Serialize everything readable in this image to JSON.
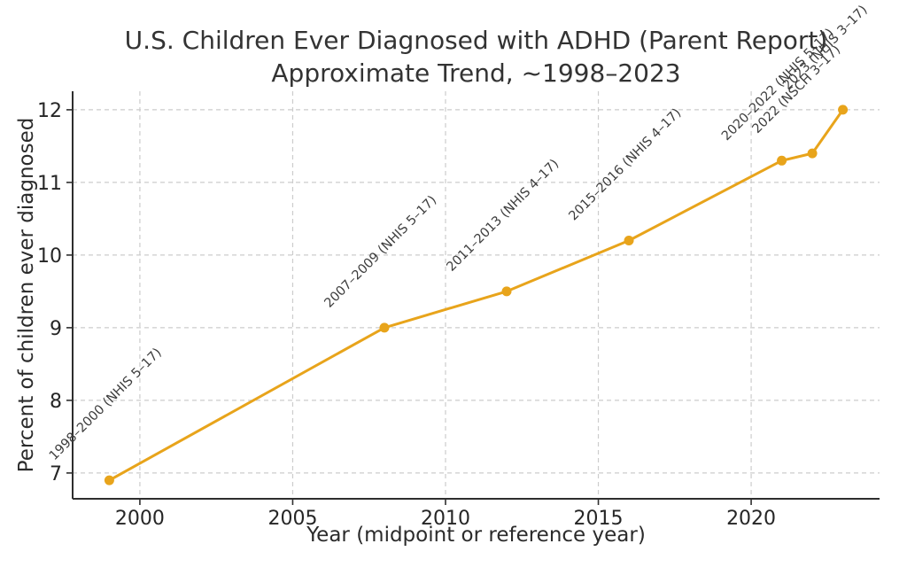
{
  "chart_data": {
    "type": "line",
    "title": "U.S. Children Ever Diagnosed with ADHD (Parent Report)\nApproximate Trend, ~1998–2023",
    "title_line1": "U.S. Children Ever Diagnosed with ADHD (Parent Report)",
    "title_line2": "Approximate Trend, ~1998–2023",
    "xlabel": "Year (midpoint or reference year)",
    "ylabel": "Percent of children ever diagnosed",
    "x": [
      1999,
      2008,
      2012,
      2016,
      2021,
      2022,
      2023
    ],
    "values": [
      6.9,
      9.0,
      9.5,
      10.2,
      11.3,
      11.4,
      12.0
    ],
    "point_labels": [
      "1998–2000 (NHIS 5–17)",
      "2007–2009 (NHIS 5–17)",
      "2011–2013 (NHIS 4–17)",
      "2015–2016 (NHIS 4–17)",
      "2020–2022 (NHIS 5–17)",
      "2022 (NSCH 3–17)",
      "2023 (NHIS 3–17)"
    ],
    "x_ticks": [
      2000,
      2005,
      2010,
      2015,
      2020
    ],
    "y_ticks": [
      7,
      8,
      9,
      10,
      11,
      12
    ],
    "xlim": [
      1997.8,
      2024.2
    ],
    "ylim": [
      6.645,
      12.255
    ],
    "grid": true,
    "legend": "none",
    "colors": {
      "line": "#E8A41B",
      "marker": "#E8A41B",
      "grid": "#cccccc",
      "spine": "#2e2e2e",
      "tick_text": "#262626",
      "title_text": "#333333",
      "annotation_text": "#3d3d3d"
    }
  }
}
